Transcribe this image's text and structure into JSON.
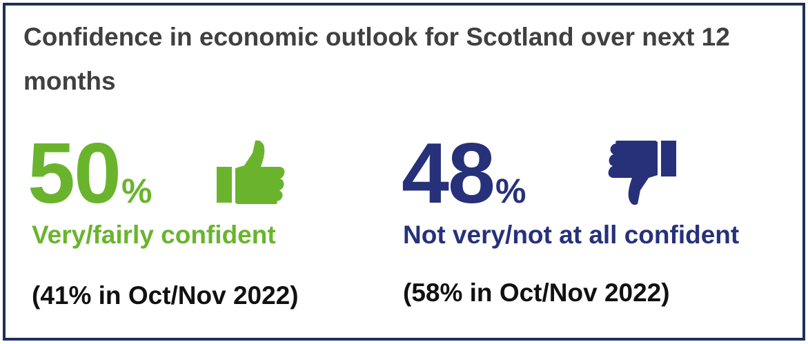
{
  "title": "Confidence in economic outlook for Scotland over next 12 months",
  "confident": {
    "value": "50",
    "pct_sign": "%",
    "label": "Very/fairly confident",
    "previous": "(41% in Oct/Nov 2022)",
    "icon": "thumbs-up-icon",
    "color": "#6ab42d"
  },
  "not_confident": {
    "value": "48",
    "pct_sign": "%",
    "label": "Not very/not at all confident",
    "previous": "(58% in Oct/Nov 2022)",
    "icon": "thumbs-down-icon",
    "color": "#27317a"
  },
  "border_color": "#1f2e5e"
}
